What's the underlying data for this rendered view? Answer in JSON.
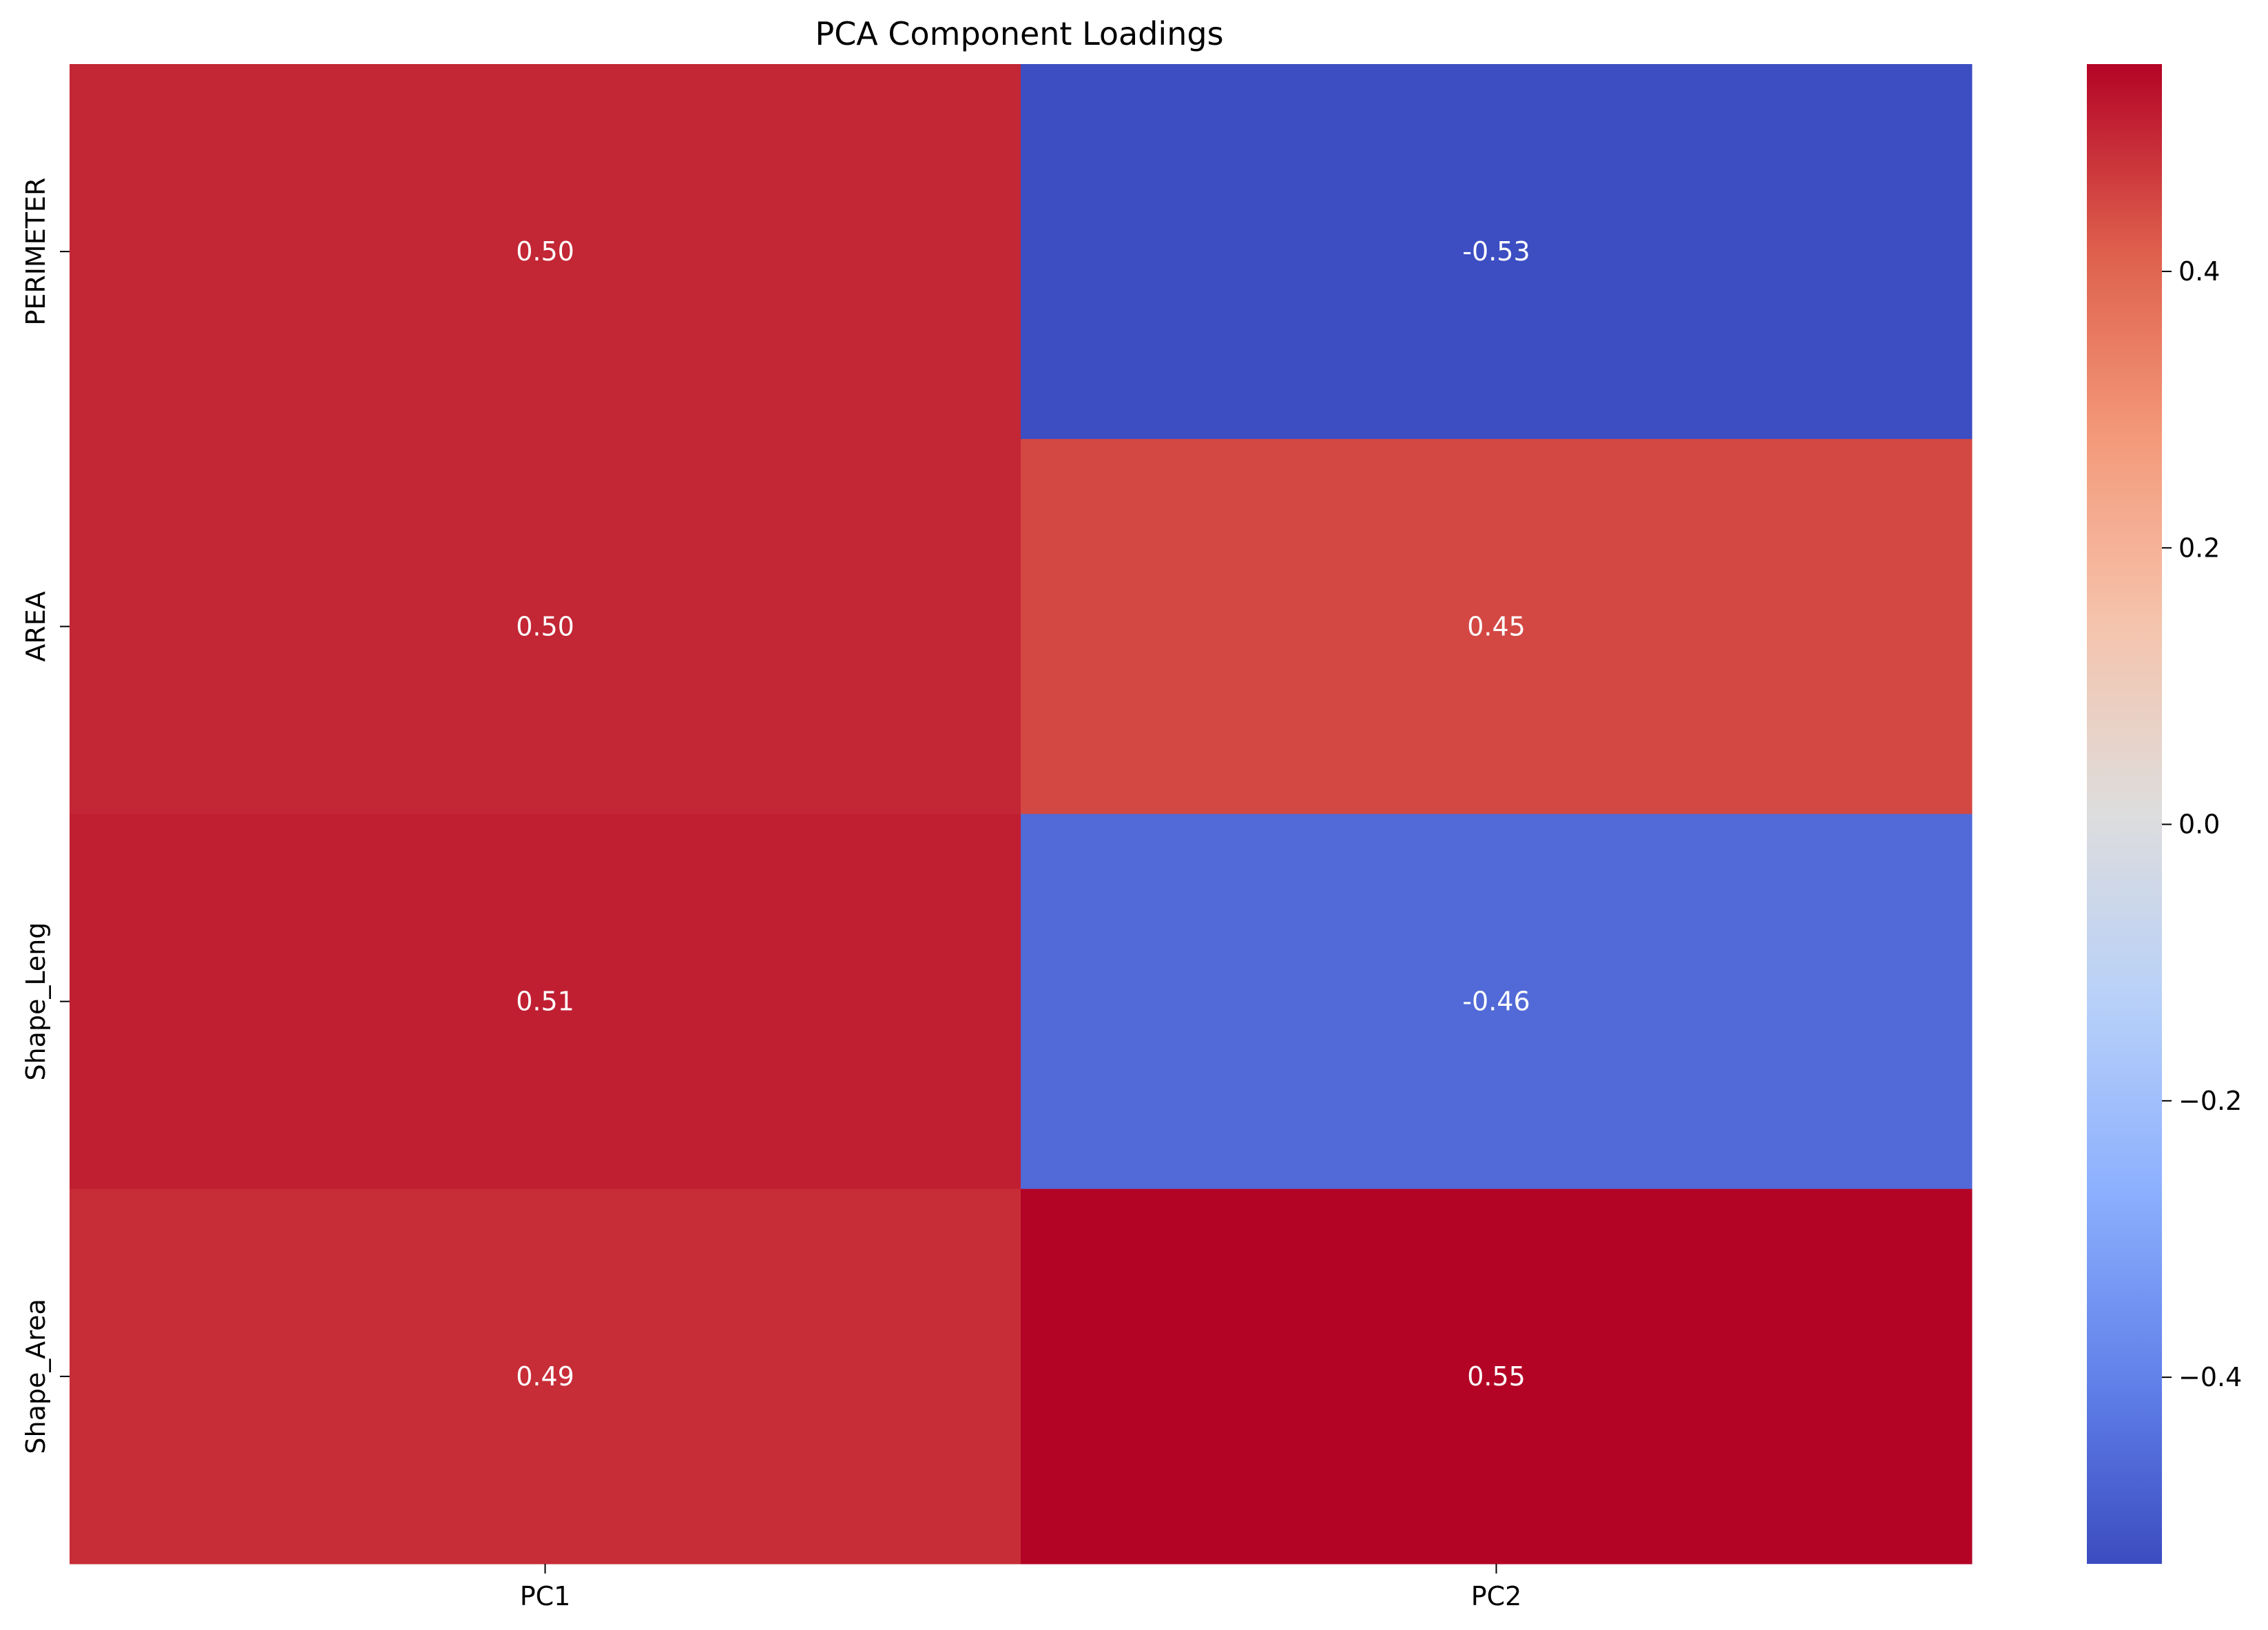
{
  "chart_data": {
    "type": "heatmap",
    "title": "PCA Component Loadings",
    "xlabel": "",
    "ylabel": "",
    "x_categories": [
      "PC1",
      "PC2"
    ],
    "y_categories": [
      "PERIMETER",
      "AREA",
      "Shape_Leng",
      "Shape_Area"
    ],
    "values": [
      [
        0.5,
        -0.53
      ],
      [
        0.5,
        0.45
      ],
      [
        0.51,
        -0.46
      ],
      [
        0.49,
        0.55
      ]
    ],
    "cell_labels": [
      [
        "0.50",
        "-0.53"
      ],
      [
        "0.50",
        "0.45"
      ],
      [
        "0.51",
        "-0.46"
      ],
      [
        "0.49",
        "0.55"
      ]
    ],
    "colormap": "coolwarm",
    "color_range": [
      -0.535,
      0.55
    ],
    "colorbar": {
      "ticks": [
        0.4,
        0.2,
        0.0,
        -0.2,
        -0.4
      ],
      "tick_labels": [
        "0.4",
        "0.2",
        "0.0",
        "−0.2",
        "−0.4"
      ],
      "position": "right"
    },
    "annotation_color": "#ffffff"
  }
}
